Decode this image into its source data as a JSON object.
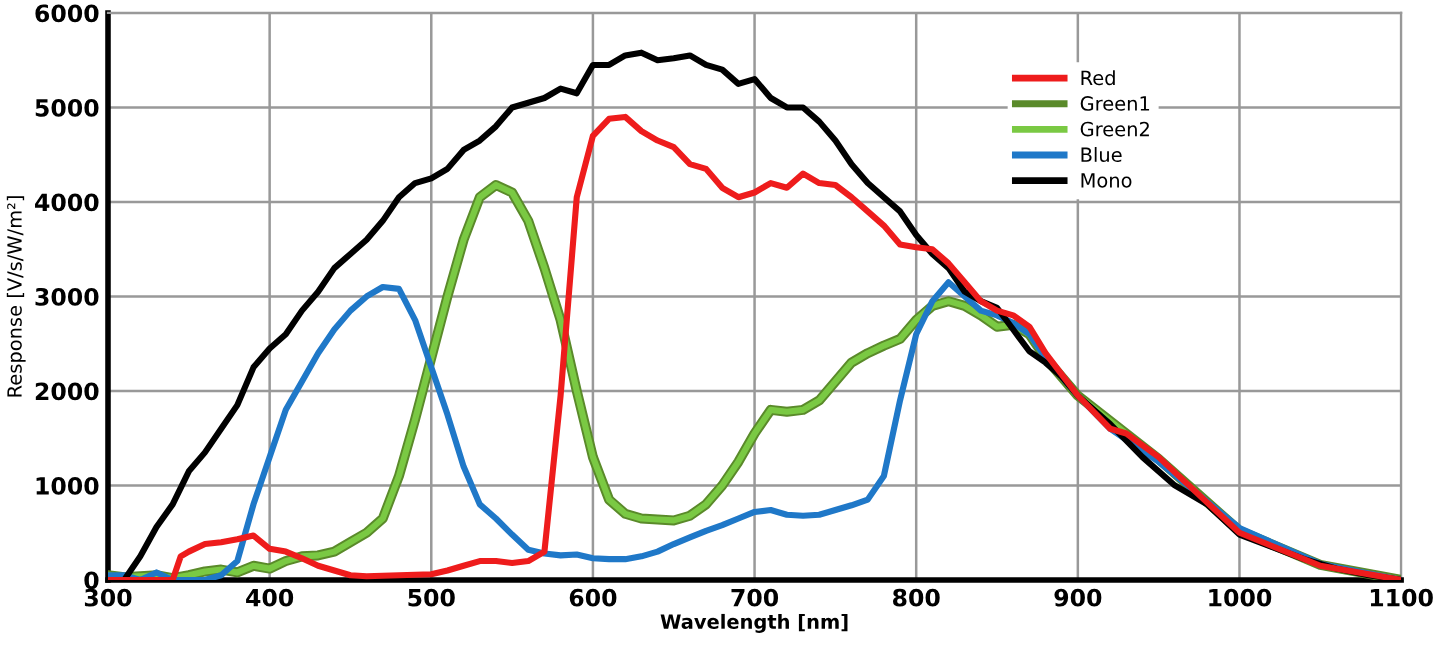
{
  "chart_data": {
    "type": "line",
    "xlabel": "Wavelength [nm]",
    "ylabel": "Response [V/s/W/m²]",
    "xlim": [
      300,
      1100
    ],
    "xticks": [
      300,
      400,
      500,
      600,
      700,
      800,
      900,
      1000,
      1100
    ],
    "ylim": [
      0,
      6000
    ],
    "yticks": [
      0,
      1000,
      2000,
      3000,
      4000,
      5000,
      6000
    ],
    "grid": true,
    "legend": "top right",
    "marker": "none",
    "line_style": "solid",
    "series": [
      {
        "name": "Red",
        "color": "#ee1c1c",
        "x": [
          300,
          340,
          345,
          350,
          360,
          370,
          380,
          390,
          400,
          410,
          420,
          430,
          440,
          450,
          460,
          480,
          500,
          510,
          520,
          530,
          540,
          550,
          560,
          570,
          580,
          590,
          600,
          610,
          620,
          630,
          640,
          650,
          660,
          670,
          680,
          690,
          700,
          710,
          720,
          730,
          740,
          750,
          760,
          770,
          780,
          790,
          800,
          810,
          820,
          830,
          840,
          850,
          860,
          870,
          880,
          900,
          920,
          930,
          950,
          1000,
          1050,
          1100
        ],
        "values": [
          0,
          0,
          250,
          300,
          380,
          400,
          430,
          470,
          330,
          300,
          230,
          150,
          100,
          50,
          40,
          50,
          60,
          100,
          150,
          200,
          200,
          180,
          200,
          300,
          1950,
          4050,
          4700,
          4880,
          4900,
          4750,
          4650,
          4580,
          4400,
          4350,
          4150,
          4050,
          4100,
          4200,
          4150,
          4300,
          4200,
          4180,
          4050,
          3900,
          3750,
          3550,
          3520,
          3500,
          3350,
          3150,
          2950,
          2850,
          2800,
          2680,
          2400,
          1950,
          1600,
          1550,
          1300,
          500,
          150,
          0
        ]
      },
      {
        "name": "Green1",
        "color": "#5a8a2a",
        "x": [
          300,
          310,
          330,
          340,
          350,
          360,
          370,
          380,
          390,
          400,
          410,
          420,
          430,
          440,
          450,
          460,
          470,
          480,
          490,
          500,
          510,
          520,
          530,
          540,
          550,
          560,
          570,
          580,
          590,
          600,
          610,
          620,
          630,
          640,
          650,
          660,
          670,
          680,
          690,
          700,
          710,
          720,
          730,
          740,
          750,
          760,
          770,
          780,
          790,
          800,
          810,
          820,
          830,
          840,
          850,
          860,
          870,
          880,
          900,
          950,
          1000,
          1050,
          1100
        ],
        "values": [
          50,
          30,
          50,
          20,
          50,
          90,
          110,
          80,
          150,
          120,
          200,
          250,
          260,
          300,
          400,
          500,
          650,
          1100,
          1700,
          2350,
          3000,
          3600,
          4050,
          4180,
          4100,
          3800,
          3300,
          2750,
          2000,
          1300,
          850,
          700,
          650,
          640,
          630,
          680,
          800,
          1000,
          1250,
          1550,
          1800,
          1780,
          1800,
          1900,
          2100,
          2300,
          2400,
          2480,
          2550,
          2750,
          2900,
          2950,
          2900,
          2800,
          2680,
          2700,
          2600,
          2350,
          1950,
          1280,
          520,
          160,
          0
        ]
      },
      {
        "name": "Green2",
        "color": "#7ac943",
        "x": [
          300,
          310,
          330,
          340,
          350,
          360,
          370,
          380,
          390,
          400,
          410,
          420,
          430,
          440,
          450,
          460,
          470,
          480,
          490,
          500,
          510,
          520,
          530,
          540,
          550,
          560,
          570,
          580,
          590,
          600,
          610,
          620,
          630,
          640,
          650,
          660,
          670,
          680,
          690,
          700,
          710,
          720,
          730,
          740,
          750,
          760,
          770,
          780,
          790,
          800,
          810,
          820,
          830,
          840,
          850,
          860,
          870,
          880,
          900,
          950,
          1000,
          1050,
          1100
        ],
        "values": [
          50,
          30,
          50,
          20,
          50,
          90,
          110,
          80,
          150,
          120,
          200,
          250,
          260,
          300,
          400,
          500,
          650,
          1100,
          1700,
          2350,
          3000,
          3600,
          4050,
          4180,
          4100,
          3800,
          3300,
          2750,
          2000,
          1300,
          850,
          700,
          650,
          640,
          630,
          680,
          800,
          1000,
          1250,
          1550,
          1800,
          1780,
          1800,
          1900,
          2100,
          2300,
          2400,
          2480,
          2550,
          2750,
          2900,
          2950,
          2900,
          2800,
          2680,
          2700,
          2600,
          2350,
          1950,
          1280,
          520,
          160,
          0
        ]
      },
      {
        "name": "Blue",
        "color": "#1f78c8",
        "x": [
          300,
          310,
          320,
          330,
          340,
          350,
          360,
          370,
          380,
          390,
          400,
          410,
          420,
          430,
          440,
          450,
          460,
          470,
          480,
          490,
          500,
          510,
          520,
          530,
          540,
          550,
          560,
          570,
          580,
          590,
          600,
          610,
          620,
          630,
          640,
          650,
          660,
          670,
          680,
          690,
          700,
          710,
          720,
          730,
          740,
          750,
          760,
          770,
          780,
          790,
          800,
          810,
          820,
          830,
          840,
          850,
          860,
          870,
          880,
          900,
          920,
          950,
          1000,
          1050,
          1100
        ],
        "values": [
          50,
          50,
          0,
          80,
          0,
          0,
          0,
          50,
          200,
          800,
          1300,
          1800,
          2100,
          2400,
          2650,
          2850,
          3000,
          3100,
          3080,
          2750,
          2250,
          1750,
          1200,
          800,
          650,
          480,
          320,
          280,
          260,
          270,
          230,
          220,
          220,
          250,
          300,
          380,
          450,
          520,
          580,
          650,
          720,
          740,
          690,
          680,
          690,
          740,
          790,
          850,
          1100,
          1900,
          2600,
          2950,
          3150,
          3000,
          2850,
          2800,
          2720,
          2600,
          2350,
          1950,
          1600,
          1250,
          550,
          170,
          0
        ]
      },
      {
        "name": "Mono",
        "color": "#000000",
        "x": [
          300,
          310,
          320,
          330,
          340,
          350,
          360,
          370,
          380,
          390,
          400,
          410,
          420,
          430,
          440,
          450,
          460,
          470,
          480,
          490,
          500,
          510,
          520,
          530,
          540,
          550,
          560,
          570,
          580,
          590,
          600,
          610,
          620,
          630,
          640,
          650,
          660,
          670,
          680,
          690,
          700,
          710,
          720,
          730,
          740,
          750,
          760,
          770,
          780,
          790,
          800,
          810,
          820,
          830,
          840,
          850,
          860,
          870,
          880,
          890,
          900,
          920,
          940,
          960,
          980,
          1000,
          1020,
          1040,
          1060,
          1080,
          1100
        ],
        "values": [
          0,
          0,
          250,
          560,
          800,
          1150,
          1350,
          1600,
          1850,
          2250,
          2450,
          2600,
          2850,
          3050,
          3300,
          3450,
          3600,
          3800,
          4050,
          4200,
          4250,
          4350,
          4550,
          4650,
          4800,
          5000,
          5050,
          5100,
          5200,
          5150,
          5450,
          5450,
          5550,
          5580,
          5500,
          5520,
          5550,
          5450,
          5400,
          5250,
          5300,
          5100,
          5000,
          5000,
          4850,
          4650,
          4400,
          4200,
          4050,
          3900,
          3650,
          3450,
          3300,
          3050,
          2950,
          2880,
          2650,
          2420,
          2300,
          2150,
          1950,
          1650,
          1300,
          1000,
          800,
          480,
          350,
          220,
          120,
          50,
          0
        ]
      }
    ]
  }
}
